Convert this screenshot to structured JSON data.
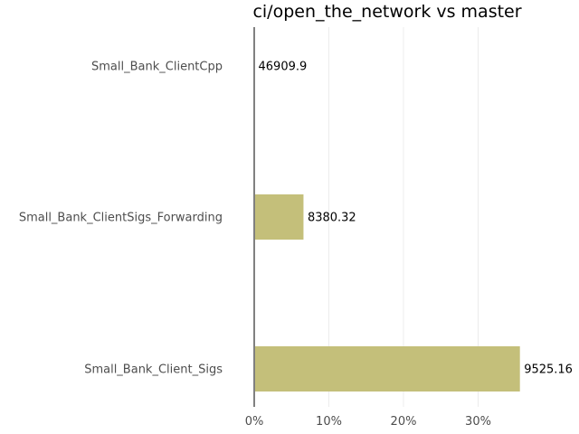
{
  "chart_data": {
    "type": "bar",
    "orientation": "horizontal",
    "title": "ci/open_the_network vs master",
    "xlabel": "",
    "ylabel": "",
    "categories": [
      "Small_Bank_ClientCpp",
      "Small_Bank_ClientSigs_Forwarding",
      "Small_Bank_Client_Sigs"
    ],
    "values": [
      0,
      6.6,
      35.6
    ],
    "value_unit": "%",
    "data_labels": [
      "46909.9",
      "8380.32",
      "9525.16"
    ],
    "xlim": [
      0,
      40
    ],
    "xticks": [
      0,
      10,
      20,
      30
    ],
    "xtick_labels": [
      "0%",
      "10%",
      "20%",
      "30%"
    ],
    "grid": "vertical",
    "legend": "none",
    "colors": {
      "bar": "#c4bf7a",
      "zero_line": "#808080",
      "grid": "#ececec"
    }
  }
}
